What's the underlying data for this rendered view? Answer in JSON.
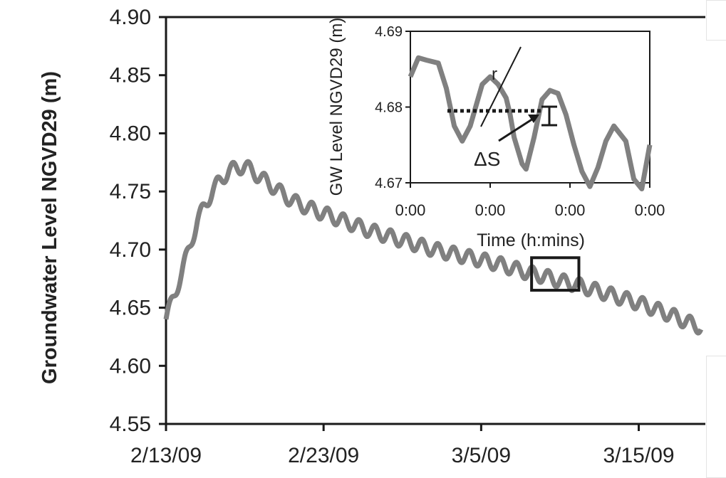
{
  "chart_data": [
    {
      "type": "line",
      "title": "",
      "xlabel": "",
      "ylabel": "Groundwater Level NGVD29 (m)",
      "x_ticks": [
        "2/13/09",
        "2/23/09",
        "3/5/09",
        "3/15/09"
      ],
      "y_ticks": [
        "4.55",
        "4.60",
        "4.65",
        "4.70",
        "4.75",
        "4.80",
        "4.85",
        "4.90"
      ],
      "ylim": [
        4.55,
        4.9
      ],
      "xlim": [
        "2009-02-13",
        "2009-03-19"
      ],
      "grid": false,
      "legend": "none",
      "series_color": "#808080",
      "series": [
        {
          "x": [
            "2009-02-13",
            "2009-02-14",
            "2009-02-15",
            "2009-02-16",
            "2009-02-17",
            "2009-02-18",
            "2009-02-19",
            "2009-02-20",
            "2009-02-21",
            "2009-02-22",
            "2009-02-23",
            "2009-02-24",
            "2009-02-25",
            "2009-02-26",
            "2009-02-27",
            "2009-02-28",
            "2009-03-01",
            "2009-03-02",
            "2009-03-03",
            "2009-03-04",
            "2009-03-05",
            "2009-03-06",
            "2009-03-07",
            "2009-03-08",
            "2009-03-09",
            "2009-03-10",
            "2009-03-11",
            "2009-03-12",
            "2009-03-13",
            "2009-03-14",
            "2009-03-15",
            "2009-03-16",
            "2009-03-17",
            "2009-03-18",
            "2009-03-19"
          ],
          "values": [
            4.64,
            4.68,
            4.725,
            4.752,
            4.768,
            4.772,
            4.762,
            4.752,
            4.742,
            4.736,
            4.731,
            4.726,
            4.721,
            4.716,
            4.712,
            4.708,
            4.704,
            4.7,
            4.697,
            4.694,
            4.691,
            4.688,
            4.684,
            4.68,
            4.677,
            4.673,
            4.67,
            4.666,
            4.662,
            4.658,
            4.654,
            4.649,
            4.644,
            4.638,
            4.633
          ],
          "daily_oscillation_amplitude": 0.006
        }
      ],
      "annotations": [
        "rectangle around 3/6/09 – 3/9/09 marking the inset window"
      ]
    },
    {
      "type": "line",
      "title": "",
      "xlabel": "Time (h:mins)",
      "ylabel": "GW Level NGVD29 (m)",
      "x_ticks": [
        "0:00",
        "0:00",
        "0:00",
        "0:00"
      ],
      "y_ticks": [
        "4.67",
        "4.68",
        "4.69"
      ],
      "ylim": [
        4.67,
        4.69
      ],
      "grid": false,
      "legend": "none",
      "series": [
        {
          "x": [
            0.0,
            0.1,
            0.2,
            0.35,
            0.45,
            0.55,
            0.65,
            0.75,
            0.9,
            1.0,
            1.1,
            1.2,
            1.25,
            1.3,
            1.4,
            1.45,
            1.55,
            1.65,
            1.75,
            1.85,
            1.95,
            2.05,
            2.15,
            2.25,
            2.35,
            2.45,
            2.55,
            2.7,
            2.8,
            2.9,
            3.0
          ],
          "values": [
            4.684,
            4.6865,
            4.6862,
            4.6858,
            4.6825,
            4.6775,
            4.6755,
            4.6775,
            4.683,
            4.684,
            4.683,
            4.6812,
            4.679,
            4.676,
            4.6725,
            4.6718,
            4.676,
            4.681,
            4.6822,
            4.6818,
            4.679,
            4.675,
            4.6715,
            4.6695,
            4.672,
            4.6755,
            4.6775,
            4.6755,
            4.6705,
            4.6692,
            4.675
          ]
        }
      ],
      "annotations": [
        {
          "text": "r"
        },
        {
          "text": "ΔS"
        }
      ]
    }
  ]
}
